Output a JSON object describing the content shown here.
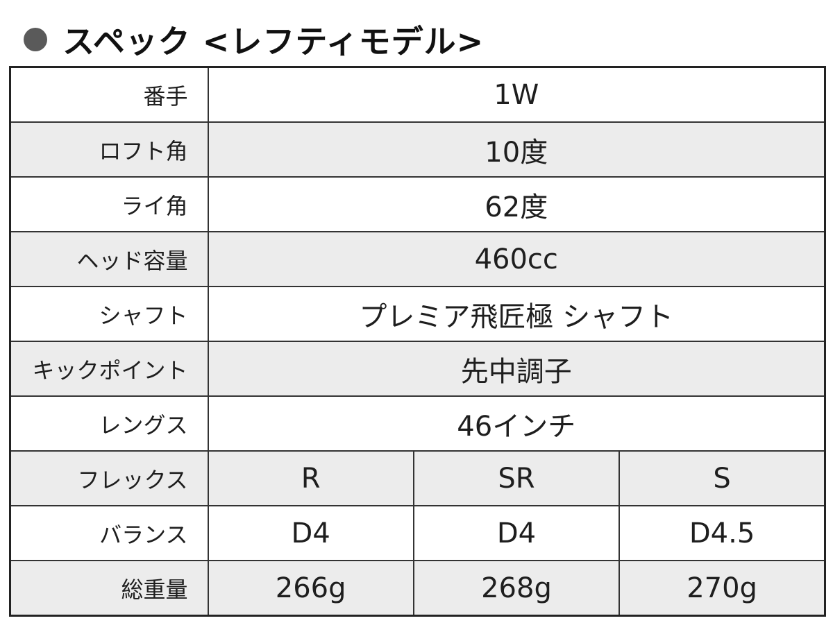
{
  "section": {
    "title": "スペック <レフティモデル>"
  },
  "spec": {
    "rows": [
      {
        "label": "番手",
        "value": "1W"
      },
      {
        "label": "ロフト角",
        "value": "10度"
      },
      {
        "label": "ライ角",
        "value": "62度"
      },
      {
        "label": "ヘッド容量",
        "value": "460cc"
      },
      {
        "label": "シャフト",
        "value": "プレミア飛匠極 シャフト"
      },
      {
        "label": "キックポイント",
        "value": "先中調子"
      },
      {
        "label": "レングス",
        "value": "46インチ"
      }
    ],
    "split_rows": [
      {
        "label": "フレックス",
        "values": [
          "R",
          "SR",
          "S"
        ]
      },
      {
        "label": "バランス",
        "values": [
          "D4",
          "D4",
          "D4.5"
        ]
      },
      {
        "label": "総重量",
        "values": [
          "266g",
          "268g",
          "270g"
        ]
      }
    ]
  }
}
